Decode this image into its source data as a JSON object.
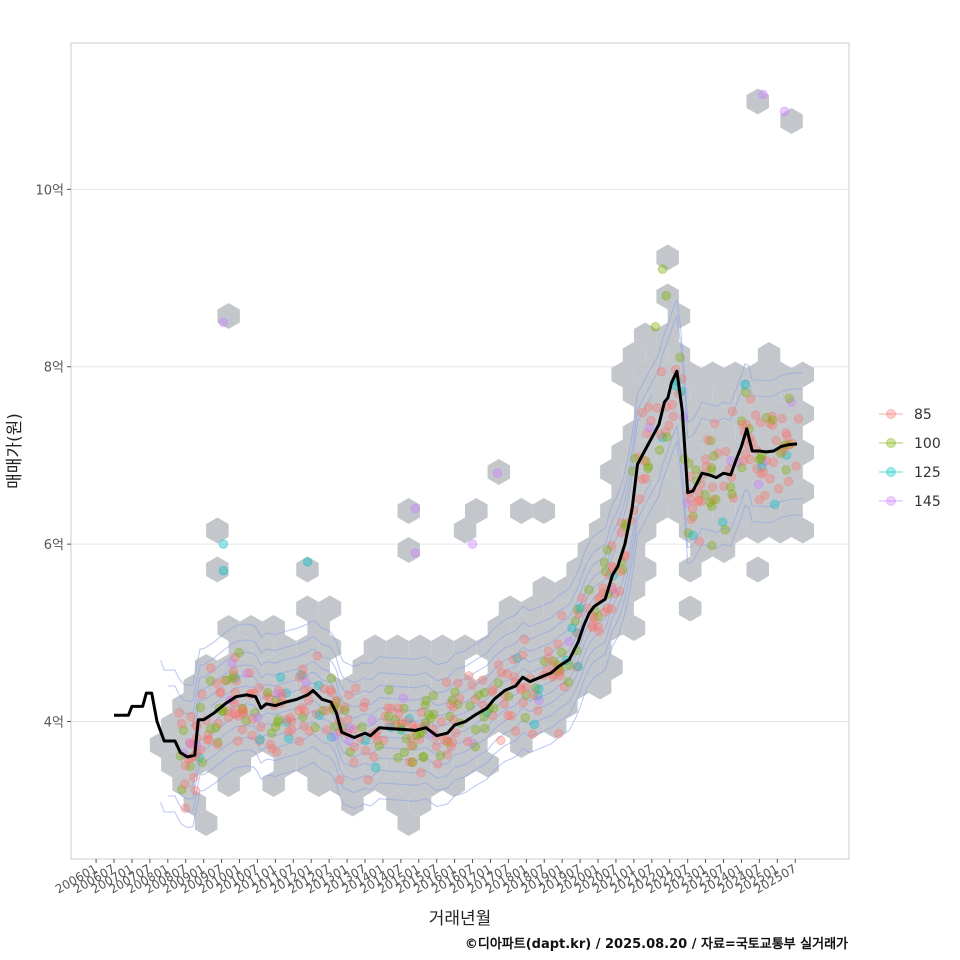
{
  "chart_data": {
    "type": "scatter",
    "title": "",
    "xlabel": "거래년월",
    "ylabel": "매매가(원)",
    "caption": "©디아파트(dapt.kr) / 2025.08.20 / 자료=국토교통부 실거래가",
    "x_ticks": [
      "200601",
      "200607",
      "200701",
      "200707",
      "200801",
      "200807",
      "200901",
      "200907",
      "201001",
      "201007",
      "201101",
      "201107",
      "201201",
      "201207",
      "201301",
      "201307",
      "201401",
      "201407",
      "201501",
      "201507",
      "201601",
      "201607",
      "201701",
      "201707",
      "201801",
      "201807",
      "201901",
      "201907",
      "202001",
      "202007",
      "202101",
      "202107",
      "202201",
      "202207",
      "202301",
      "202307",
      "202401",
      "202407",
      "202501",
      "202507"
    ],
    "y_ticks": [
      {
        "value": 4,
        "label": "4억"
      },
      {
        "value": 6,
        "label": "6억"
      },
      {
        "value": 8,
        "label": "8억"
      },
      {
        "value": 10,
        "label": "10억"
      }
    ],
    "xlim": [
      2005.3,
      2027.0
    ],
    "ylim": [
      2.45,
      11.65
    ],
    "legend": {
      "position": "right",
      "entries": [
        {
          "label": "85",
          "color": "#F8766D"
        },
        {
          "label": "100",
          "color": "#7CAE00"
        },
        {
          "label": "125",
          "color": "#00BFC4"
        },
        {
          "label": "145",
          "color": "#C77CFF"
        }
      ]
    },
    "median_line": {
      "name": "moving median",
      "color": "#000000",
      "x": [
        2006.5,
        2006.9,
        2007.0,
        2007.3,
        2007.4,
        2007.55,
        2007.7,
        2007.9,
        2008.2,
        2008.35,
        2008.55,
        2008.75,
        2008.85,
        2009.0,
        2009.3,
        2009.6,
        2009.9,
        2010.2,
        2010.45,
        2010.6,
        2010.75,
        2011.0,
        2011.3,
        2011.6,
        2011.9,
        2012.05,
        2012.3,
        2012.55,
        2012.7,
        2012.85,
        2013.2,
        2013.5,
        2013.65,
        2013.9,
        2014.2,
        2014.6,
        2014.9,
        2015.2,
        2015.5,
        2015.8,
        2016.0,
        2016.3,
        2016.6,
        2016.9,
        2017.1,
        2017.4,
        2017.7,
        2017.9,
        2018.1,
        2018.4,
        2018.7,
        2018.9,
        2019.2,
        2019.45,
        2019.6,
        2019.75,
        2019.9,
        2020.2,
        2020.4,
        2020.55,
        2020.75,
        2020.95,
        2021.1,
        2021.3,
        2021.5,
        2021.7,
        2021.85,
        2021.95,
        2022.05,
        2022.2,
        2022.35,
        2022.5,
        2022.65,
        2022.9,
        2023.1,
        2023.3,
        2023.5,
        2023.7,
        2023.85,
        2024.0,
        2024.15,
        2024.3,
        2024.5,
        2024.7,
        2024.9,
        2025.1,
        2025.3,
        2025.55
      ],
      "y": [
        4.07,
        4.07,
        4.17,
        4.17,
        4.32,
        4.32,
        4.0,
        3.78,
        3.78,
        3.65,
        3.6,
        3.62,
        4.02,
        4.02,
        4.1,
        4.2,
        4.28,
        4.3,
        4.28,
        4.15,
        4.2,
        4.18,
        4.22,
        4.25,
        4.3,
        4.35,
        4.25,
        4.22,
        4.1,
        3.88,
        3.82,
        3.87,
        3.84,
        3.93,
        3.92,
        3.91,
        3.9,
        3.93,
        3.84,
        3.87,
        3.96,
        4.0,
        4.08,
        4.15,
        4.25,
        4.35,
        4.4,
        4.5,
        4.45,
        4.5,
        4.55,
        4.62,
        4.7,
        4.9,
        5.08,
        5.22,
        5.3,
        5.38,
        5.65,
        5.75,
        6.0,
        6.4,
        6.9,
        7.05,
        7.2,
        7.35,
        7.6,
        7.65,
        7.82,
        7.95,
        7.5,
        6.58,
        6.6,
        6.8,
        6.78,
        6.75,
        6.8,
        6.78,
        6.95,
        7.1,
        7.3,
        7.05,
        7.05,
        7.04,
        7.05,
        7.1,
        7.12,
        7.13
      ]
    }
  }
}
